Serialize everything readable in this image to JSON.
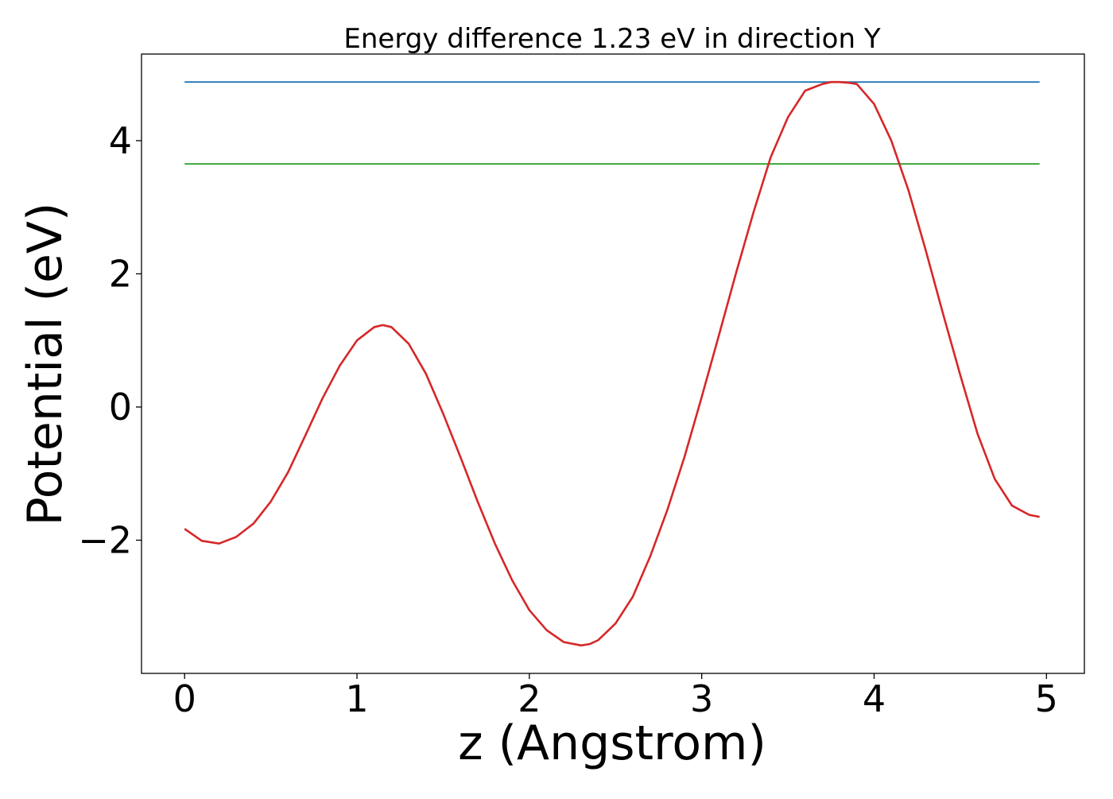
{
  "chart_data": {
    "type": "line",
    "title": "Energy difference 1.23 eV in direction Y",
    "xlabel": "z (Angstrom)",
    "ylabel": "Potential (eV)",
    "xlim": [
      -0.25,
      5.22
    ],
    "ylim": [
      -4.0,
      5.3
    ],
    "xticks": [
      0,
      1,
      2,
      3,
      4,
      5
    ],
    "xtick_labels": [
      "0",
      "1",
      "2",
      "3",
      "4",
      "5"
    ],
    "yticks": [
      -2,
      0,
      2,
      4
    ],
    "ytick_labels": [
      "−2",
      "0",
      "2",
      "4"
    ],
    "grid": false,
    "series": [
      {
        "color": "#d62728",
        "x": [
          0.0,
          0.1,
          0.2,
          0.3,
          0.4,
          0.5,
          0.6,
          0.7,
          0.8,
          0.9,
          1.0,
          1.1,
          1.15,
          1.2,
          1.3,
          1.4,
          1.5,
          1.6,
          1.7,
          1.8,
          1.9,
          2.0,
          2.1,
          2.2,
          2.3,
          2.35,
          2.4,
          2.5,
          2.6,
          2.7,
          2.8,
          2.9,
          3.0,
          3.1,
          3.2,
          3.3,
          3.4,
          3.5,
          3.6,
          3.7,
          3.75,
          3.8,
          3.85,
          3.9,
          4.0,
          4.1,
          4.2,
          4.3,
          4.4,
          4.5,
          4.6,
          4.7,
          4.8,
          4.9,
          4.96
        ],
        "y": [
          -1.83,
          -2.01,
          -2.05,
          -1.95,
          -1.75,
          -1.42,
          -0.98,
          -0.43,
          0.13,
          0.62,
          1.0,
          1.2,
          1.23,
          1.2,
          0.95,
          0.5,
          -0.1,
          -0.75,
          -1.42,
          -2.05,
          -2.6,
          -3.05,
          -3.35,
          -3.53,
          -3.58,
          -3.56,
          -3.5,
          -3.25,
          -2.85,
          -2.25,
          -1.55,
          -0.75,
          0.15,
          1.08,
          2.02,
          2.92,
          3.75,
          4.35,
          4.75,
          4.85,
          4.88,
          4.88,
          4.87,
          4.85,
          4.55,
          4.0,
          3.25,
          2.35,
          1.4,
          0.48,
          -0.4,
          -1.08,
          -1.48,
          -1.62,
          -1.65
        ]
      },
      {
        "color": "#1f77b4",
        "x": [
          0.0,
          4.96
        ],
        "y": [
          4.88,
          4.88
        ]
      },
      {
        "color": "#2ca02c",
        "x": [
          0.0,
          4.96
        ],
        "y": [
          3.65,
          3.65
        ]
      }
    ]
  }
}
